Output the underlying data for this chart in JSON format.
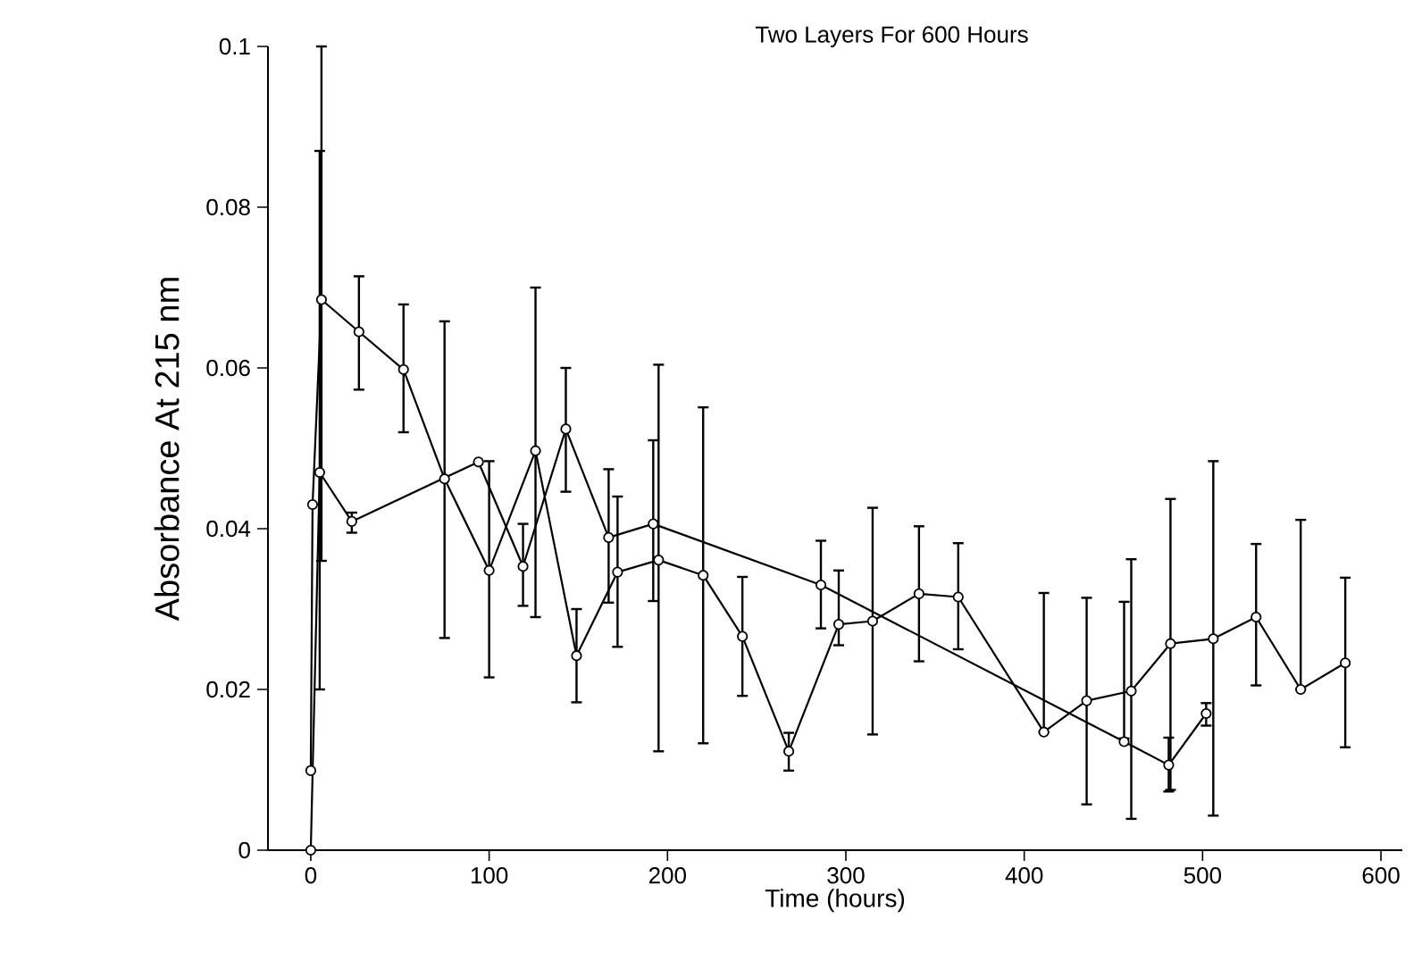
{
  "chart_data": {
    "type": "line",
    "title": "Two Layers For 600 Hours",
    "xlabel": "Time (hours)",
    "ylabel": "Absorbance At 215 nm",
    "xlim": [
      -24,
      612
    ],
    "xticks": [
      0,
      100,
      200,
      300,
      400,
      500,
      600
    ],
    "ylim": [
      0,
      0.1
    ],
    "yticks": [
      0,
      0.02,
      0.04,
      0.06,
      0.08,
      0.1
    ],
    "marker": "circle",
    "line_style": "solid",
    "grid": false,
    "legend": false,
    "series": [
      {
        "color": "#000000",
        "x": [
          0,
          1,
          6,
          27,
          52,
          75,
          100,
          126,
          149,
          172,
          195,
          220,
          242,
          268,
          296,
          315,
          341,
          363,
          411,
          435,
          460,
          482,
          506,
          530,
          555,
          580
        ],
        "values": [
          0.0099,
          0.043,
          0.0685,
          0.0645,
          0.0598,
          0.0462,
          0.0348,
          0.0497,
          0.0242,
          0.0346,
          0.0361,
          0.0342,
          0.0266,
          0.0123,
          0.0281,
          0.0285,
          0.0319,
          0.0315,
          0.0147,
          0.0186,
          0.0198,
          0.0257,
          0.0263,
          0.029,
          0.02,
          0.0233
        ],
        "errors": [
          null,
          null,
          [
            0.036,
            0.1
          ],
          [
            0.0573,
            0.0714
          ],
          [
            0.052,
            0.0679
          ],
          [
            0.0264,
            0.0658
          ],
          [
            0.0215,
            0.0484
          ],
          [
            0.029,
            0.07
          ],
          [
            0.0184,
            0.03
          ],
          [
            0.0253,
            0.044
          ],
          [
            0.0123,
            0.0604
          ],
          [
            0.0133,
            0.0551
          ],
          [
            0.0192,
            0.034
          ],
          [
            0.0099,
            0.0146
          ],
          [
            0.0255,
            0.0348
          ],
          [
            0.0144,
            0.0426
          ],
          [
            0.0235,
            0.0403
          ],
          [
            0.025,
            0.0382
          ],
          [
            0.0147,
            0.032
          ],
          [
            0.0057,
            0.0314
          ],
          [
            0.0039,
            0.0362
          ],
          [
            0.0075,
            0.0437
          ],
          [
            0.0043,
            0.0484
          ],
          [
            0.0205,
            0.0381
          ],
          [
            0.02,
            0.0411
          ],
          [
            0.0128,
            0.0339
          ]
        ]
      },
      {
        "color": "#000000",
        "x": [
          0,
          5,
          23,
          94,
          119,
          143,
          167,
          192,
          286,
          456,
          481,
          502
        ],
        "values": [
          0,
          0.047,
          0.0409,
          0.0483,
          0.0353,
          0.0524,
          0.0389,
          0.0406,
          0.033,
          0.0135,
          0.0106,
          0.017
        ],
        "errors": [
          null,
          [
            0.02,
            0.087
          ],
          [
            0.0395,
            0.042
          ],
          null,
          [
            0.0304,
            0.0406
          ],
          [
            0.0446,
            0.06
          ],
          [
            0.0308,
            0.0474
          ],
          [
            0.031,
            0.051
          ],
          [
            0.0276,
            0.0385
          ],
          [
            0.0139,
            0.0309
          ],
          [
            0.0073,
            0.014
          ],
          [
            0.0155,
            0.0183
          ]
        ]
      }
    ]
  }
}
